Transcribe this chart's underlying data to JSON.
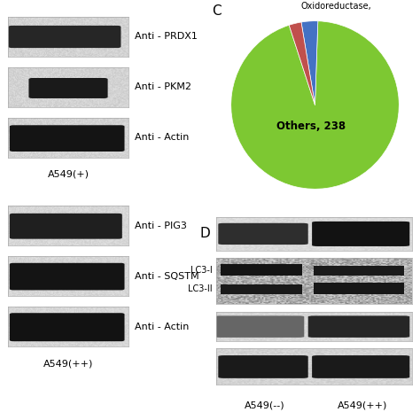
{
  "panel_C_label": "C",
  "panel_D_label": "D",
  "pie_slices": [
    238,
    8,
    6
  ],
  "pie_colors": [
    "#7dc832",
    "#4472c4",
    "#c0504d"
  ],
  "pie_others_label": "Others, 238",
  "pie_top_label": "Oxidoreductase,",
  "top_left_labels": [
    "Anti - PRDX1",
    "Anti - PKM2",
    "Anti - Actin"
  ],
  "top_left_caption": "A549(+)",
  "bottom_left_labels": [
    "Anti - PIG3",
    "Anti - SQSTM",
    "Anti - Actin"
  ],
  "bottom_left_caption": "A549(++)",
  "right_captions": [
    "A549(--)",
    "A549(++)"
  ],
  "bg_color": "#ffffff",
  "text_color": "#000000",
  "font_size_label": 8,
  "font_size_caption": 8,
  "font_size_panel": 11,
  "font_size_lc3": 7
}
